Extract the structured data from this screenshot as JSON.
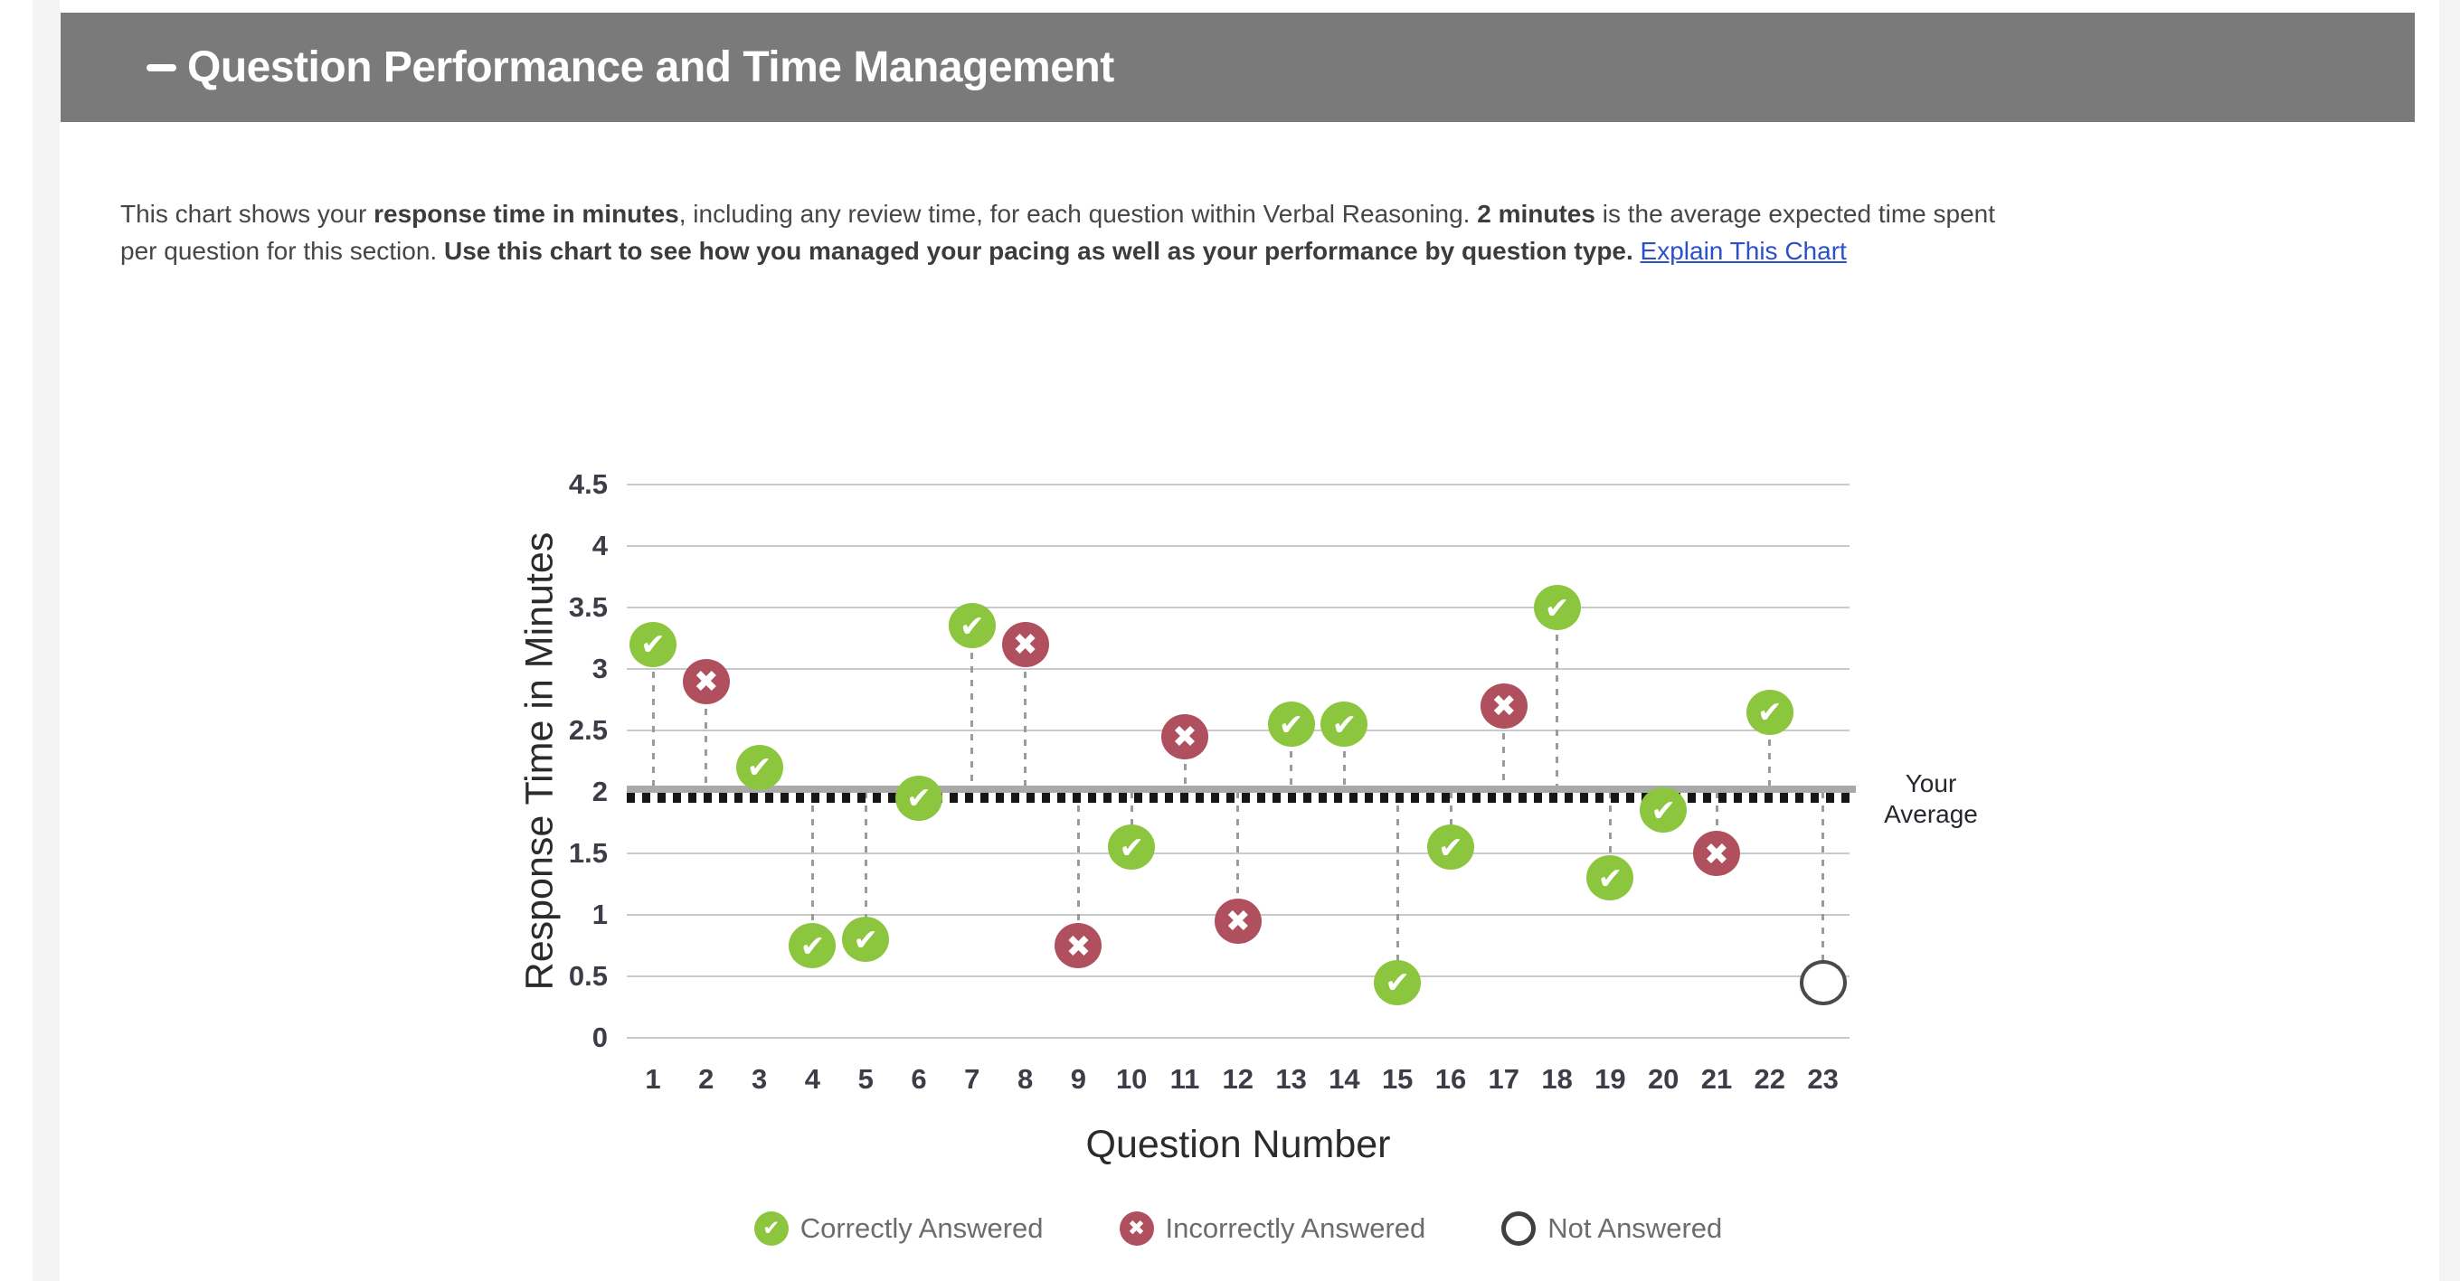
{
  "page": {
    "header": {
      "collapse_icon": "minus",
      "title": "Question Performance and Time Management"
    },
    "description": {
      "segments": [
        {
          "text": "This chart shows your ",
          "bold": false
        },
        {
          "text": "response time in minutes",
          "bold": true
        },
        {
          "text": ", including any review time, for each question within Verbal Reasoning. ",
          "bold": false
        },
        {
          "text": "2 minutes",
          "bold": true
        },
        {
          "text": " is the average expected time spent",
          "bold": false,
          "break_after": true
        },
        {
          "text": "per question for this section. ",
          "bold": false
        },
        {
          "text": "Use this chart to see how you managed your pacing as well as your performance by question type. ",
          "bold": true
        }
      ],
      "link_label": "Explain This Chart"
    }
  },
  "chart_data": {
    "type": "scatter",
    "title": "",
    "xlabel": "Question Number",
    "ylabel": "Response Time in Minutes",
    "ylim": [
      0,
      4.5
    ],
    "grid": true,
    "yticks": [
      {
        "v": 0,
        "label": "0"
      },
      {
        "v": 0.5,
        "label": "0.5"
      },
      {
        "v": 1,
        "label": "1"
      },
      {
        "v": 1.5,
        "label": "1.5"
      },
      {
        "v": 2,
        "label": "2"
      },
      {
        "v": 2.5,
        "label": "2.5"
      },
      {
        "v": 3,
        "label": "3"
      },
      {
        "v": 3.5,
        "label": "3.5"
      },
      {
        "v": 4,
        "label": "4"
      },
      {
        "v": 4.5,
        "label": "4.5"
      }
    ],
    "average_line": {
      "value": 2,
      "label": "Your Average"
    },
    "points": [
      {
        "q": 1,
        "minutes": 3.2,
        "status": "correct"
      },
      {
        "q": 2,
        "minutes": 2.9,
        "status": "incorrect"
      },
      {
        "q": 3,
        "minutes": 2.2,
        "status": "correct"
      },
      {
        "q": 4,
        "minutes": 0.75,
        "status": "correct"
      },
      {
        "q": 5,
        "minutes": 0.8,
        "status": "correct"
      },
      {
        "q": 6,
        "minutes": 1.95,
        "status": "correct"
      },
      {
        "q": 7,
        "minutes": 3.35,
        "status": "correct"
      },
      {
        "q": 8,
        "minutes": 3.2,
        "status": "incorrect"
      },
      {
        "q": 9,
        "minutes": 0.75,
        "status": "incorrect"
      },
      {
        "q": 10,
        "minutes": 1.55,
        "status": "correct"
      },
      {
        "q": 11,
        "minutes": 2.45,
        "status": "incorrect"
      },
      {
        "q": 12,
        "minutes": 0.95,
        "status": "incorrect"
      },
      {
        "q": 13,
        "minutes": 2.55,
        "status": "correct"
      },
      {
        "q": 14,
        "minutes": 2.55,
        "status": "correct"
      },
      {
        "q": 15,
        "minutes": 0.45,
        "status": "correct"
      },
      {
        "q": 16,
        "minutes": 1.55,
        "status": "correct"
      },
      {
        "q": 17,
        "minutes": 2.7,
        "status": "incorrect"
      },
      {
        "q": 18,
        "minutes": 3.5,
        "status": "correct"
      },
      {
        "q": 19,
        "minutes": 1.3,
        "status": "correct"
      },
      {
        "q": 20,
        "minutes": 1.85,
        "status": "correct"
      },
      {
        "q": 21,
        "minutes": 1.5,
        "status": "incorrect"
      },
      {
        "q": 22,
        "minutes": 2.65,
        "status": "correct"
      },
      {
        "q": 23,
        "minutes": 0.45,
        "status": "not_answered"
      }
    ],
    "legend": [
      {
        "status": "correct",
        "label": "Correctly Answered"
      },
      {
        "status": "incorrect",
        "label": "Incorrectly Answered"
      },
      {
        "status": "not_answered",
        "label": "Not Answered"
      }
    ],
    "marker_glyphs": {
      "correct": "✔",
      "incorrect": "✖",
      "not_answered": ""
    },
    "colors": {
      "correct": "#8cc63f",
      "incorrect": "#b04f5e",
      "not_answered_border": "#4a4a4a",
      "header_bg": "#7a7a7a",
      "link": "#2b50c8",
      "average_line_solid": "#a9a9a9",
      "average_line_dots": "#161616"
    }
  }
}
